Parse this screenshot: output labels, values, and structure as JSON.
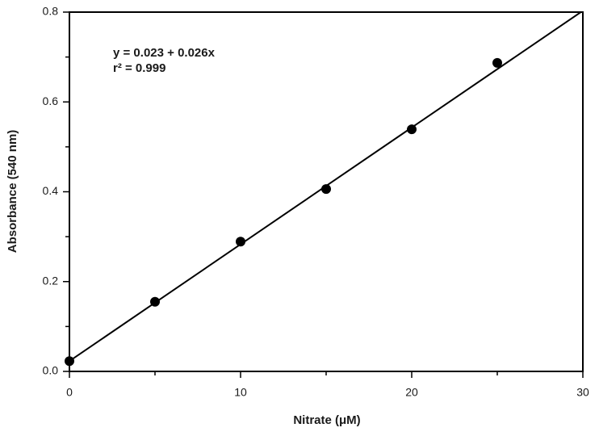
{
  "chart_data": {
    "type": "scatter",
    "x_label": "Nitrate (μM)",
    "y_label": "Absorbance (540 nm)",
    "annotations": [
      "y = 0.023 + 0.026x",
      "r² = 0.999"
    ],
    "x": [
      0,
      5,
      10,
      15,
      20,
      25
    ],
    "values": [
      0.023,
      0.155,
      0.289,
      0.406,
      0.539,
      0.687
    ],
    "color": "#000000",
    "fit": {
      "intercept": 0.023,
      "slope": 0.026
    },
    "xlim": [
      0,
      30
    ],
    "xticks": [
      0,
      10,
      20,
      30
    ],
    "xminorticks": [
      5,
      15,
      25
    ],
    "ylim": [
      0,
      0.8
    ],
    "yticks": [
      {
        "value": 0,
        "label": "0.0"
      },
      0.2,
      0.4,
      0.6,
      0.8
    ],
    "yminorticks": [
      0.1,
      0.3,
      0.5,
      0.7
    ],
    "grid": false
  }
}
